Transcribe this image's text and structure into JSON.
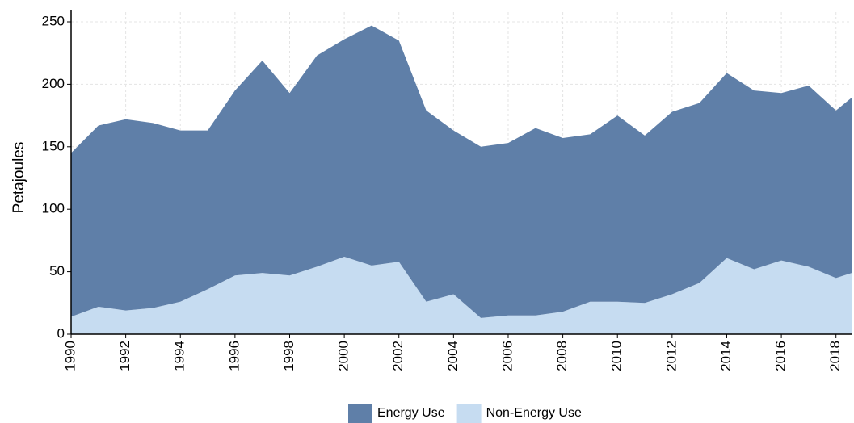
{
  "chart_data": {
    "type": "stacked_area",
    "y_label": "Petajoules",
    "x": [
      1990,
      1991,
      1992,
      1993,
      1994,
      1995,
      1996,
      1997,
      1998,
      1999,
      2000,
      2001,
      2002,
      2003,
      2004,
      2005,
      2006,
      2007,
      2008,
      2009,
      2010,
      2011,
      2012,
      2013,
      2014,
      2015,
      2016,
      2017,
      2018,
      2019
    ],
    "series": [
      {
        "name": "Non-Energy Use",
        "color": "#c6dcf1",
        "values": [
          14,
          22,
          19,
          21,
          26,
          36,
          47,
          49,
          47,
          54,
          62,
          55,
          58,
          26,
          32,
          13,
          15,
          15,
          18,
          26,
          26,
          25,
          32,
          41,
          61,
          52,
          59,
          54,
          45,
          52
        ]
      },
      {
        "name": "Energy Use",
        "color": "#5f7fa8",
        "values": [
          131,
          145,
          153,
          148,
          137,
          127,
          148,
          170,
          146,
          169,
          174,
          192,
          177,
          153,
          131,
          137,
          138,
          150,
          139,
          134,
          149,
          134,
          146,
          144,
          148,
          143,
          134,
          145,
          134,
          145
        ]
      }
    ],
    "legend_order": [
      1,
      0
    ],
    "xlim": [
      1990,
      2018.6
    ],
    "xticks": [
      1990,
      1992,
      1994,
      1996,
      1998,
      2000,
      2002,
      2004,
      2006,
      2008,
      2010,
      2012,
      2014,
      2016,
      2018
    ],
    "ylim": [
      0,
      250
    ],
    "yticks": [
      0,
      50,
      100,
      150,
      200,
      250
    ],
    "grid": true,
    "legend": "bottom"
  }
}
